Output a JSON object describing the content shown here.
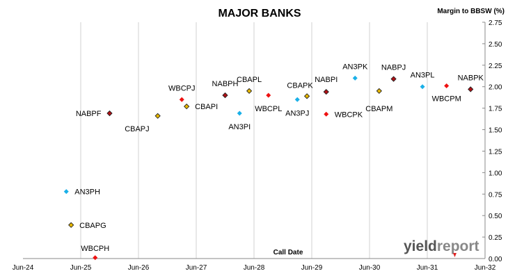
{
  "chart_data": {
    "type": "scatter",
    "title": "MAJOR BANKS",
    "xlabel": "Call Date",
    "ylabel": "Margin to BBSW (%)",
    "x_ticks": [
      "Jun-24",
      "Jun-25",
      "Jun-26",
      "Jun-27",
      "Jun-28",
      "Jun-29",
      "Jun-30",
      "Jun-31",
      "Jun-32"
    ],
    "ylim": [
      0,
      2.75
    ],
    "y_ticks": [
      "0.00",
      "0.25",
      "0.50",
      "0.75",
      "1.00",
      "1.25",
      "1.50",
      "1.75",
      "2.00",
      "2.25",
      "2.50",
      "2.75"
    ],
    "grid": "vertical",
    "logo": "yieldreport",
    "colors": {
      "ANZ": "#1ab0e8",
      "CBA": "#e8b800",
      "NAB": "#b01015",
      "WBC": "#ee1111"
    },
    "points": [
      {
        "label": "AN3PH",
        "x": "Mar-25",
        "y": 0.78,
        "issuer": "ANZ"
      },
      {
        "label": "CBAPG",
        "x": "Apr-25",
        "y": 0.39,
        "issuer": "CBA"
      },
      {
        "label": "WBCPH",
        "x": "Sep-25",
        "y": 0.01,
        "issuer": "WBC"
      },
      {
        "label": "NABPF",
        "x": "Dec-25",
        "y": 1.69,
        "issuer": "NAB"
      },
      {
        "label": "CBAPJ",
        "x": "Oct-26",
        "y": 1.66,
        "issuer": "CBA"
      },
      {
        "label": "WBCPJ",
        "x": "Mar-27",
        "y": 1.85,
        "issuer": "WBC"
      },
      {
        "label": "CBAPI",
        "x": "Apr-27",
        "y": 1.77,
        "issuer": "CBA"
      },
      {
        "label": "NABPH",
        "x": "Dec-27",
        "y": 1.9,
        "issuer": "NAB"
      },
      {
        "label": "AN3PI",
        "x": "Mar-28",
        "y": 1.69,
        "issuer": "ANZ"
      },
      {
        "label": "CBAPL",
        "x": "May-28",
        "y": 1.95,
        "issuer": "CBA"
      },
      {
        "label": "WBCPL",
        "x": "Sep-28",
        "y": 1.9,
        "issuer": "WBC"
      },
      {
        "label": "AN3PJ",
        "x": "Mar-29",
        "y": 1.85,
        "issuer": "ANZ"
      },
      {
        "label": "CBAPK",
        "x": "May-29",
        "y": 1.89,
        "issuer": "CBA"
      },
      {
        "label": "NABPI",
        "x": "Sep-29",
        "y": 1.94,
        "issuer": "NAB"
      },
      {
        "label": "WBCPK",
        "x": "Sep-29",
        "y": 1.68,
        "issuer": "WBC"
      },
      {
        "label": "AN3PK",
        "x": "Mar-30",
        "y": 2.1,
        "issuer": "ANZ"
      },
      {
        "label": "CBAPM",
        "x": "Aug-30",
        "y": 1.95,
        "issuer": "CBA"
      },
      {
        "label": "NABPJ",
        "x": "Nov-30",
        "y": 2.09,
        "issuer": "NAB"
      },
      {
        "label": "AN3PL",
        "x": "May-31",
        "y": 2.0,
        "issuer": "ANZ"
      },
      {
        "label": "WBCPM",
        "x": "Oct-31",
        "y": 2.01,
        "issuer": "WBC"
      },
      {
        "label": "NABPK",
        "x": "Mar-32",
        "y": 1.97,
        "issuer": "NAB"
      }
    ]
  }
}
